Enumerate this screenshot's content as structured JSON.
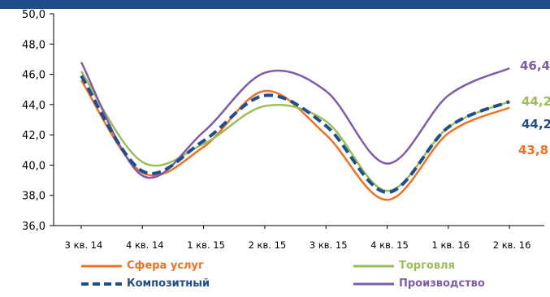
{
  "chart_data": {
    "type": "line",
    "categories": [
      "3 кв. 14",
      "4 кв. 14",
      "1 кв. 15",
      "2 кв. 15",
      "3 кв. 15",
      "4 кв. 15",
      "1 кв. 16",
      "2 кв. 16"
    ],
    "yticks": [
      "36,0",
      "38,0",
      "40,0",
      "42,0",
      "44,0",
      "46,0",
      "48,0",
      "50,0"
    ],
    "ylim": [
      36,
      50
    ],
    "grid": false,
    "legend_position": "bottom",
    "series": [
      {
        "name": "Сфера услуг",
        "values": [
          45.6,
          39.5,
          41.2,
          44.9,
          42.0,
          37.7,
          42.1,
          43.8
        ],
        "color": "#F07124",
        "dash": "solid",
        "end_label": "43,8"
      },
      {
        "name": "Торговля",
        "values": [
          46.2,
          40.2,
          41.4,
          43.9,
          42.9,
          38.3,
          42.5,
          44.2
        ],
        "color": "#9BBE5A",
        "dash": "solid",
        "end_label": "44,2"
      },
      {
        "name": "Композитный",
        "values": [
          45.9,
          39.6,
          41.6,
          44.6,
          42.6,
          38.2,
          42.5,
          44.2
        ],
        "color": "#1F4E8C",
        "dash": "dashed",
        "end_label": "44,2"
      },
      {
        "name": "Производство",
        "values": [
          46.8,
          39.3,
          42.2,
          46.1,
          44.9,
          40.1,
          44.6,
          46.4
        ],
        "color": "#7F5CAA",
        "dash": "solid",
        "end_label": "46,4"
      }
    ]
  },
  "header_bar_color": "#1F4E8C"
}
